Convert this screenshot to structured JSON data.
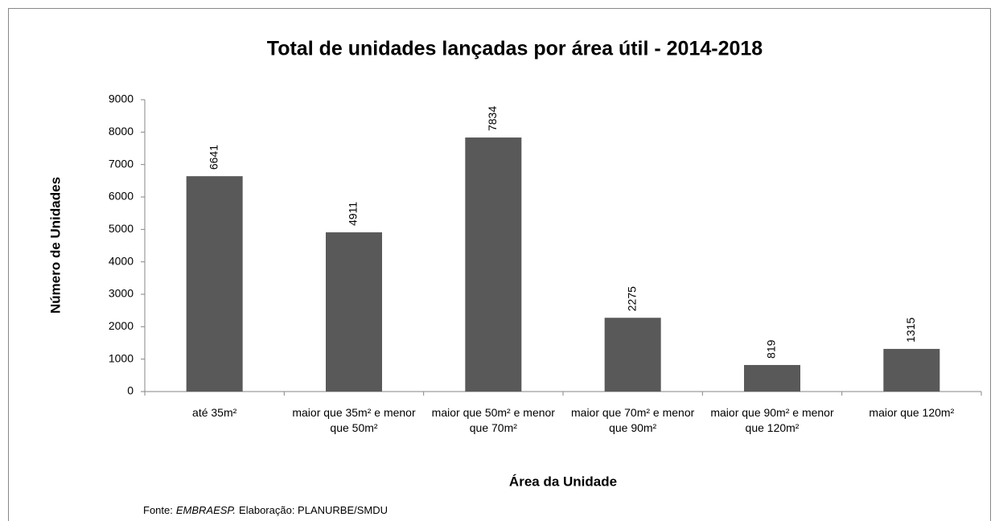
{
  "chart_data": {
    "type": "bar",
    "title": "Total de unidades lançadas por área útil - 2014-2018",
    "x_label": "Área da Unidade",
    "y_label": "Número de Unidades",
    "categories": [
      "até 35m²",
      "maior que 35m² e menor que 50m²",
      "maior que 50m² e menor que 70m²",
      "maior que 70m² e menor que 90m²",
      "maior que 90m² e menor que 120m²",
      "maior que 120m²"
    ],
    "values": [
      6641,
      4911,
      7834,
      2275,
      819,
      1315
    ],
    "color": "#595959",
    "ylim": [
      0,
      9000
    ],
    "yticks": [
      0,
      1000,
      2000,
      3000,
      4000,
      5000,
      6000,
      7000,
      8000,
      9000
    ],
    "grid": false,
    "source": {
      "prefix": "Fonte:",
      "italic": "EMBRAESP.",
      "rest": "Elaboração: PLANURBE/SMDU"
    }
  }
}
